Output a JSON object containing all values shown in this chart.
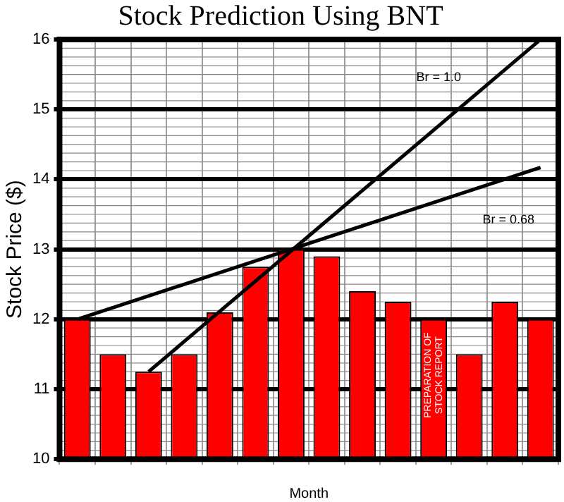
{
  "chart_data": {
    "type": "bar",
    "title": "Stock Prediction Using BNT",
    "xlabel": "Month",
    "ylabel": "Stock Price ($)",
    "categories": [
      null,
      null,
      null,
      null,
      null,
      null,
      null,
      null,
      null,
      null,
      null,
      null,
      null,
      null
    ],
    "series": [
      {
        "color": "#ff0000",
        "values": [
          12,
          11.5,
          11.25,
          11.5,
          12.1,
          12.75,
          13,
          12.9,
          12.4,
          12.25,
          12,
          11.5,
          12.25,
          12
        ]
      },
      {
        "type": "line",
        "name": "Br = 0.68",
        "color": "#000000",
        "values": [
          12,
          null,
          null,
          null,
          null,
          null,
          null,
          null,
          null,
          null,
          null,
          null,
          null,
          14.17
        ]
      },
      {
        "type": "line",
        "name": "Br = 1.0",
        "color": "#000000",
        "values": [
          null,
          null,
          11.25,
          null,
          null,
          null,
          null,
          null,
          null,
          null,
          null,
          null,
          null,
          16
        ]
      }
    ],
    "ylim": [
      10,
      16
    ],
    "yticks": [
      10,
      11,
      12,
      13,
      14,
      15,
      16
    ],
    "grid": true,
    "legend": false,
    "marker": "none",
    "annotations": [
      "PREPARATION OF STOCK REPORT"
    ]
  }
}
